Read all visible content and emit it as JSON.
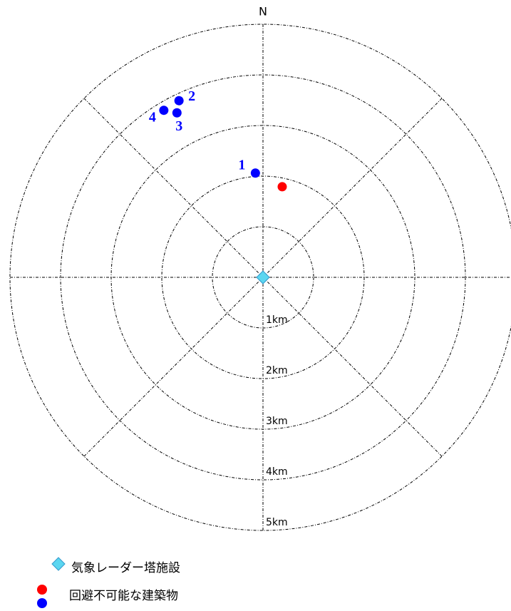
{
  "chart_data": {
    "type": "polar_scatter",
    "north_label": "N",
    "rlim": [
      0,
      5
    ],
    "rticks": [
      {
        "value": 1,
        "label": "1km"
      },
      {
        "value": 2,
        "label": "2km"
      },
      {
        "value": 3,
        "label": "3km"
      },
      {
        "value": 4,
        "label": "4km"
      },
      {
        "value": 5,
        "label": "5km"
      }
    ],
    "series": [
      {
        "name": "気象レーダー塔施設",
        "color": "#5bd6f0",
        "marker": "diamond",
        "x": [
          0
        ],
        "y": [
          0
        ]
      },
      {
        "name": "回避不可能な建築物",
        "color": "#ff0000",
        "marker": "circle",
        "x": [
          0.38
        ],
        "y": [
          1.79
        ]
      },
      {
        "color": "#0000ff",
        "marker": "circle",
        "x": [
          -0.15,
          -1.66,
          -1.7,
          -1.96
        ],
        "y": [
          2.06,
          3.49,
          3.25,
          3.3
        ],
        "point_labels": [
          "1",
          "2",
          "3",
          "4"
        ]
      }
    ]
  }
}
